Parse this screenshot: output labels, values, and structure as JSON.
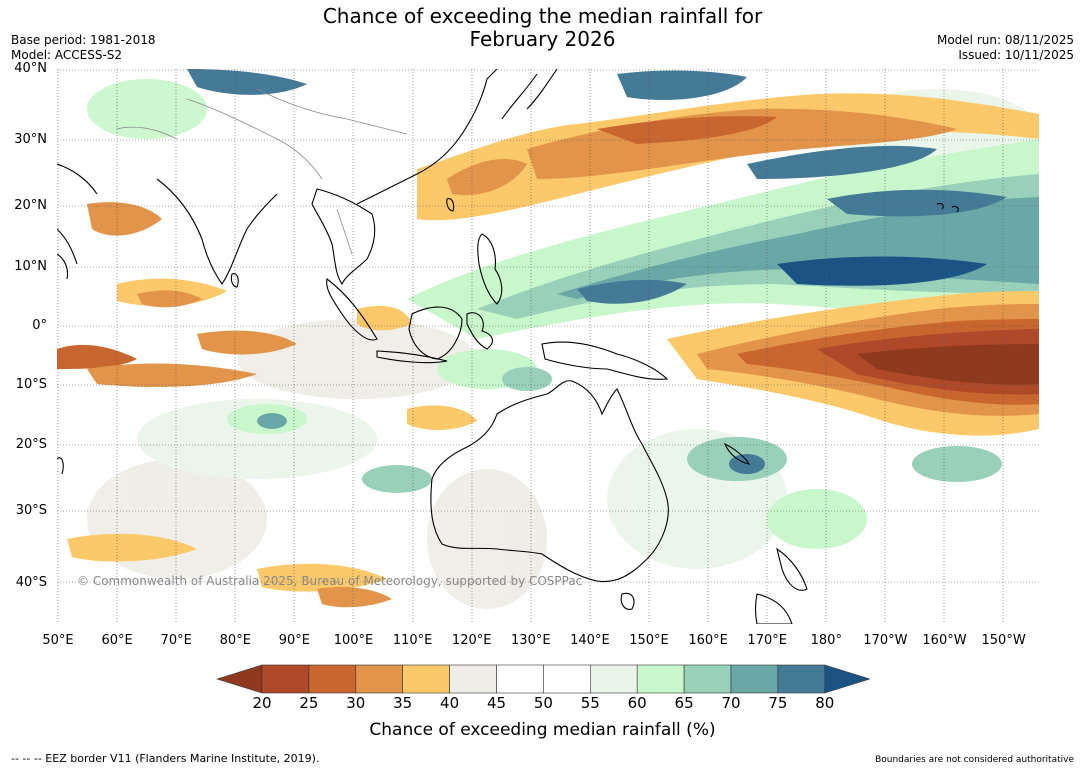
{
  "title_line1": "Chance of exceeding the median rainfall for",
  "title_line2": "February 2026",
  "base_period": "Base period: 1981-2018",
  "model": "Model: ACCESS-S2",
  "model_run": "Model run: 08/11/2025",
  "issued": "Issued: 10/11/2025",
  "lat_labels": [
    "40°N",
    "30°N",
    "20°N",
    "10°N",
    "0°",
    "10°S",
    "20°S",
    "30°S",
    "40°S"
  ],
  "lon_labels": [
    "50°E",
    "60°E",
    "70°E",
    "80°E",
    "90°E",
    "100°E",
    "110°E",
    "120°E",
    "130°E",
    "140°E",
    "150°E",
    "160°E",
    "170°E",
    "180°",
    "170°W",
    "160°W",
    "150°W"
  ],
  "colorbar": {
    "ticks": [
      "20",
      "25",
      "30",
      "35",
      "40",
      "45",
      "50",
      "55",
      "60",
      "65",
      "70",
      "75",
      "80"
    ],
    "colors": [
      "#8f3a1e",
      "#b0492a",
      "#c9652f",
      "#e1944a",
      "#fbc96a",
      "#efede7",
      "#ffffff",
      "#ffffff",
      "#eaf5ea",
      "#c9f7cc",
      "#99d0b9",
      "#6aa8a8",
      "#447a96",
      "#1a5384"
    ],
    "title": "Chance of exceeding median rainfall (%)"
  },
  "copyright": "© Commonwealth of Australia 2025, Bureau of Meteorology, supported by COSPPac",
  "footer_left": "--  --  -- EEZ border V11 (Flanders Marine Institute, 2019).",
  "footer_right": "Boundaries are not considered authoritative"
}
